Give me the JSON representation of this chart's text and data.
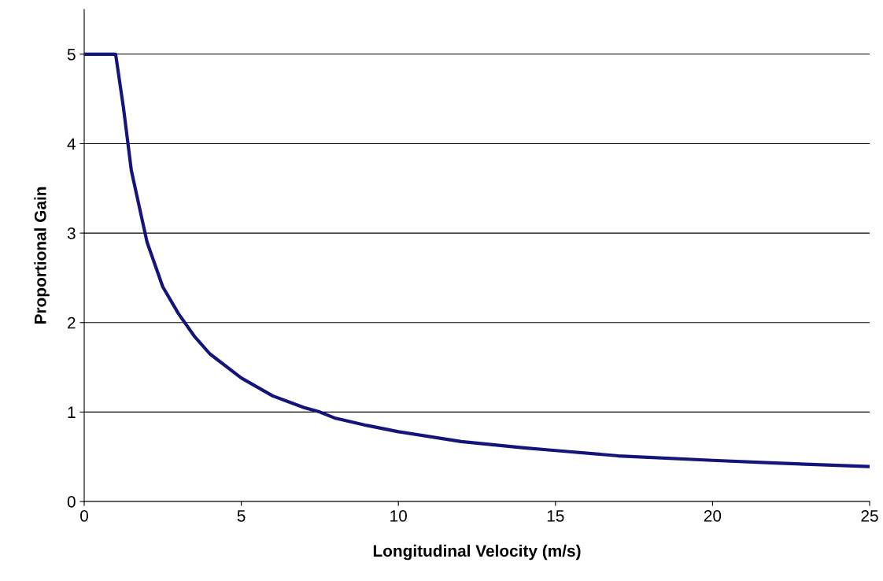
{
  "chart_data": {
    "type": "line",
    "xlabel": "Longitudinal Velocity (m/s)",
    "ylabel": "Proportional Gain",
    "x": [
      0,
      1,
      1.25,
      1.5,
      2,
      2.5,
      3,
      3.5,
      4,
      5,
      6,
      7,
      7.5,
      8,
      9,
      10,
      12,
      14,
      15,
      17,
      20,
      22,
      25
    ],
    "series": [
      {
        "color": "#14147a",
        "values": [
          5,
          5,
          4.4,
          3.7,
          2.9,
          2.4,
          2.1,
          1.85,
          1.65,
          1.38,
          1.18,
          1.05,
          1.0,
          0.93,
          0.85,
          0.78,
          0.67,
          0.6,
          0.57,
          0.51,
          0.46,
          0.43,
          0.39
        ]
      }
    ],
    "xlim": [
      0,
      25
    ],
    "xticks": [
      0,
      5,
      10,
      15,
      20,
      25
    ],
    "ylim": [
      0,
      5.5
    ],
    "yticks": [
      0,
      1,
      2,
      3,
      4,
      5
    ],
    "grid": "y",
    "marker": "none",
    "line_style": "solid"
  }
}
